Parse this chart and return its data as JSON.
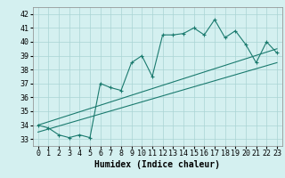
{
  "xlabel": "Humidex (Indice chaleur)",
  "ylabel": "",
  "bg_color": "#d4f0f0",
  "grid_color": "#aad4d4",
  "line_color": "#1a7a6e",
  "xlim": [
    -0.5,
    23.5
  ],
  "ylim": [
    32.5,
    42.5
  ],
  "xticks": [
    0,
    1,
    2,
    3,
    4,
    5,
    6,
    7,
    8,
    9,
    10,
    11,
    12,
    13,
    14,
    15,
    16,
    17,
    18,
    19,
    20,
    21,
    22,
    23
  ],
  "yticks": [
    33,
    34,
    35,
    36,
    37,
    38,
    39,
    40,
    41,
    42
  ],
  "line1_x": [
    0,
    1,
    2,
    3,
    4,
    5,
    6,
    7,
    8,
    9,
    10,
    11,
    12,
    13,
    14,
    15,
    16,
    17,
    18,
    19,
    20,
    21,
    22,
    23
  ],
  "line1_y": [
    34.0,
    33.8,
    33.3,
    33.1,
    33.3,
    33.1,
    37.0,
    36.7,
    36.5,
    38.5,
    39.0,
    37.5,
    40.5,
    40.5,
    40.6,
    41.0,
    40.5,
    41.6,
    40.3,
    40.8,
    39.8,
    38.5,
    40.0,
    39.2
  ],
  "line2_x": [
    0,
    23
  ],
  "line2_y": [
    34.0,
    39.5
  ],
  "line3_x": [
    0,
    23
  ],
  "line3_y": [
    33.5,
    38.5
  ],
  "font_size_ticks": 6,
  "font_size_xlabel": 7
}
